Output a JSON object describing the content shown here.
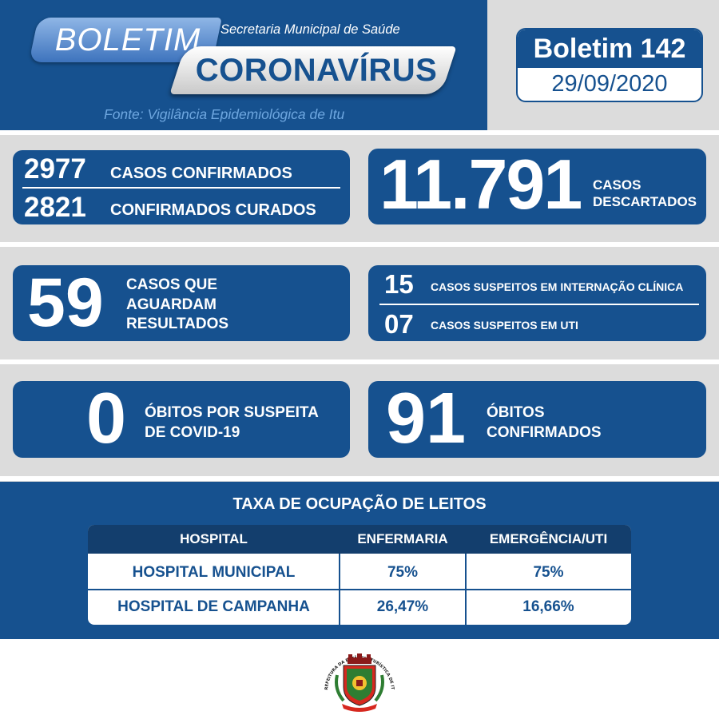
{
  "header": {
    "boletim_label": "BOLETIM",
    "secretaria": "Secretaria Municipal de Saúde",
    "coronavirus": "CORONAVÍRUS",
    "fonte": "Fonte: Vigilância Epidemiológica de Itu",
    "bulletin_number": "Boletim 142",
    "date": "29/09/2020"
  },
  "cases": {
    "confirmados_num": "2977",
    "confirmados_label": "CASOS CONFIRMADOS",
    "curados_num": "2821",
    "curados_label": "CONFIRMADOS CURADOS",
    "descartados_num": "11.791",
    "descartados_label_1": "CASOS",
    "descartados_label_2": "DESCARTADOS"
  },
  "pending": {
    "aguardam_num": "59",
    "aguardam_label_1": "CASOS QUE",
    "aguardam_label_2": "AGUARDAM",
    "aguardam_label_3": "RESULTADOS",
    "internacao_num": "15",
    "internacao_label": "CASOS SUSPEITOS EM INTERNAÇÃO CLÍNICA",
    "uti_num": "07",
    "uti_label": "CASOS SUSPEITOS EM UTI"
  },
  "deaths": {
    "suspeita_num": "0",
    "suspeita_label_1": "ÓBITOS POR SUSPEITA",
    "suspeita_label_2": "DE COVID-19",
    "confirmados_num": "91",
    "confirmados_label_1": "ÓBITOS",
    "confirmados_label_2": "CONFIRMADOS"
  },
  "beds": {
    "title": "TAXA DE OCUPAÇÃO DE LEITOS",
    "headers": [
      "HOSPITAL",
      "ENFERMARIA",
      "EMERGÊNCIA/UTI"
    ],
    "rows": [
      [
        "HOSPITAL MUNICIPAL",
        "75%",
        "75%"
      ],
      [
        "HOSPITAL DE CAMPANHA",
        "26,47%",
        "16,66%"
      ]
    ]
  },
  "seal": {
    "text": "PREFEITURA DA ESTÂNCIA TURÍSTICA DE ITU"
  },
  "colors": {
    "primary_blue": "#16518f",
    "dark_blue": "#133e6d",
    "light_blue_text": "#6ea7e0",
    "grey": "#dcdcdc"
  }
}
